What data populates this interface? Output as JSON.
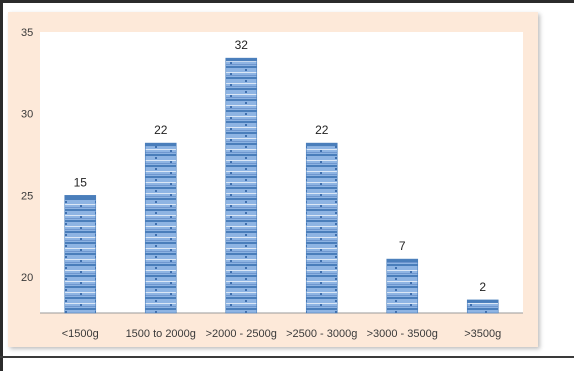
{
  "chart_data": {
    "type": "bar",
    "categories": [
      "<1500g",
      "1500 to 2000g",
      ">2000 - 2500g",
      ">2500 - 3000g",
      ">3000 - 3500g",
      ">3500g"
    ],
    "values": [
      15,
      22,
      32,
      22,
      7,
      2
    ],
    "bar_tops": [
      25,
      28.2,
      33.4,
      28.2,
      21.1,
      18.6
    ],
    "data_labels": [
      "15",
      "22",
      "32",
      "22",
      "7",
      "2"
    ],
    "y_ticks": [
      "35",
      "30",
      "25",
      "20"
    ],
    "y_tick_values": [
      35,
      30,
      25,
      20
    ],
    "ylim": [
      17.8,
      35
    ],
    "grid": false,
    "legend": "none",
    "colors": {
      "bar_fill": "#8eb4e3",
      "bar_stripe": "#4a7ebb",
      "plot_background": "#ffffff",
      "panel_background": "#fde9d9"
    }
  }
}
